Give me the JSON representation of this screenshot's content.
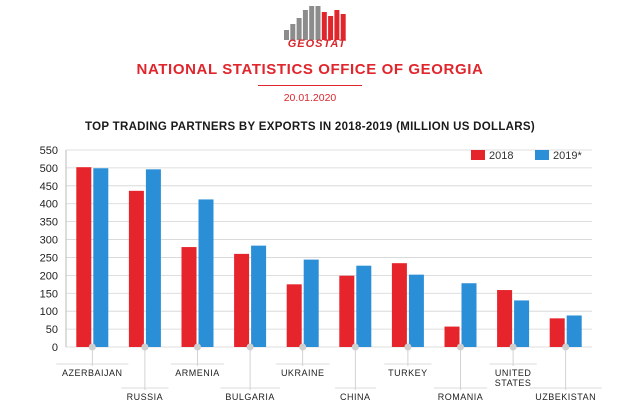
{
  "header": {
    "logo_text": "GEOSTAT",
    "office": "NATIONAL STATISTICS OFFICE OF GEORGIA",
    "date": "20.01.2020"
  },
  "colors": {
    "brand": "#e0262c",
    "series_2018": "#e5242b",
    "series_2019": "#2a8fd6",
    "logo_gray": "#8c8c8c"
  },
  "chart_data": {
    "type": "bar",
    "title": "TOP TRADING  PARTNERS BY EXPORTS IN 2018-2019 (MILLION US DOLLARS)",
    "categories": [
      "AZERBAIJAN",
      "RUSSIA",
      "ARMENIA",
      "BULGARIA",
      "UKRAINE",
      "CHINA",
      "TURKEY",
      "ROMANIA",
      "UNITED STATES",
      "UZBEKISTAN"
    ],
    "category_lines": [
      [
        "AZERBAIJAN"
      ],
      [
        "RUSSIA"
      ],
      [
        "ARMENIA"
      ],
      [
        "BULGARIA"
      ],
      [
        "UKRAINE"
      ],
      [
        "CHINA"
      ],
      [
        "TURKEY"
      ],
      [
        "ROMANIA"
      ],
      [
        "UNITED",
        "STATES"
      ],
      [
        "UZBEKISTAN"
      ]
    ],
    "series": [
      {
        "name": "2018",
        "values": [
          502,
          436,
          279,
          260,
          175,
          199,
          234,
          57,
          159,
          80
        ]
      },
      {
        "name": "2019*",
        "values": [
          499,
          496,
          412,
          283,
          244,
          227,
          202,
          178,
          130,
          88
        ]
      }
    ],
    "ylim": [
      0,
      550
    ],
    "yticks": [
      0,
      50,
      100,
      150,
      200,
      250,
      300,
      350,
      400,
      450,
      500,
      550
    ],
    "grid": true,
    "legend_position": "top-right"
  }
}
